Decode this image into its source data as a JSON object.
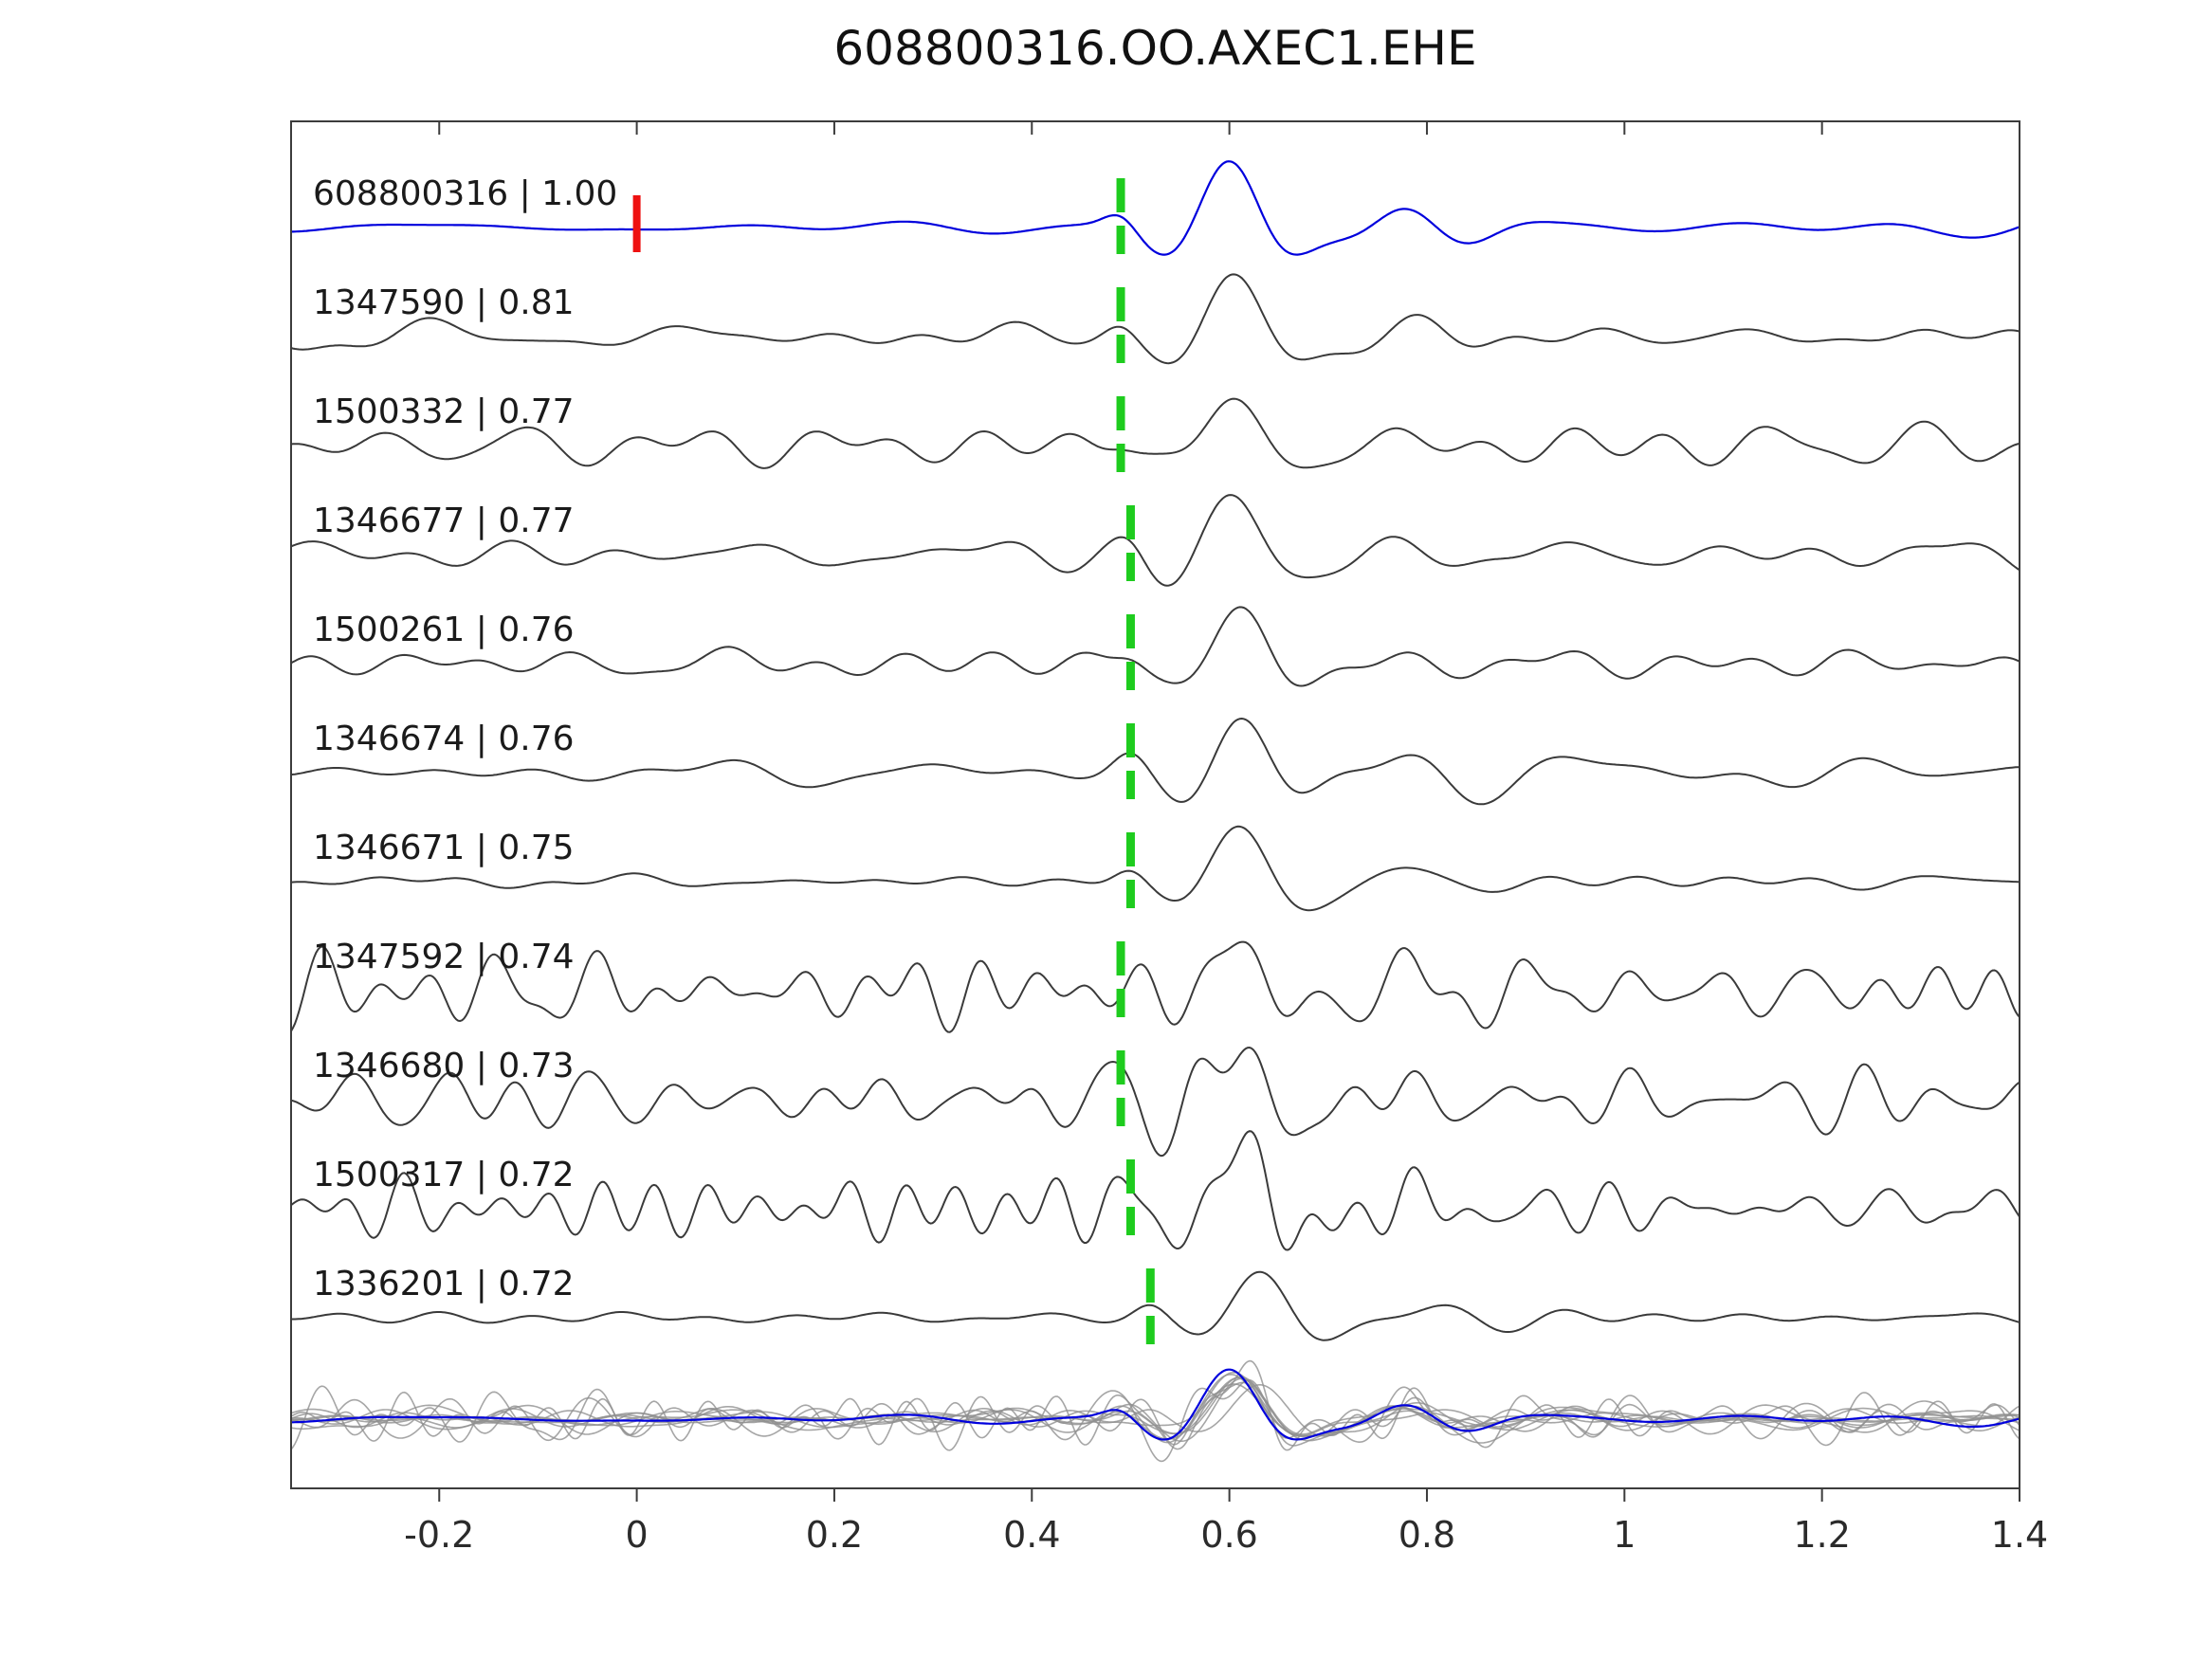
{
  "chart_data": {
    "type": "line",
    "title": "608800316.OO.AXEC1.EHE",
    "xlabel": "",
    "ylabel": "",
    "xlim": [
      -0.35,
      1.4
    ],
    "grid": false,
    "legend": "none",
    "x_ticks": [
      -0.2,
      0,
      0.2,
      0.4,
      0.6,
      0.8,
      1.0,
      1.2,
      1.4
    ],
    "x_tick_labels": [
      "-0.2",
      "0",
      "0.2",
      "0.4",
      "0.6",
      "0.8",
      "1",
      "1.2",
      "1.4"
    ],
    "colors": {
      "template_trace": "#0000dd",
      "match_trace": "#3a3a3a",
      "overlay_trace": "#909090",
      "pick_marker": "#1ecc1e",
      "origin_marker": "#ee1111",
      "axis": "#3c3c3c",
      "label_text": "#1a1a1a"
    },
    "traces": [
      {
        "id": "608800316",
        "correlation": "1.00",
        "label": "608800316 | 1.00",
        "is_template": true,
        "pick_time": 0.49,
        "origin_marker_time": 0.0,
        "noise": 0.1,
        "amplitude": 1.0
      },
      {
        "id": "1347590",
        "correlation": "0.81",
        "label": "1347590 | 0.81",
        "is_template": false,
        "pick_time": 0.49,
        "noise": 0.2,
        "amplitude": 0.92
      },
      {
        "id": "1500332",
        "correlation": "0.77",
        "label": "1500332 | 0.77",
        "is_template": false,
        "pick_time": 0.49,
        "noise": 0.33,
        "amplitude": 0.88
      },
      {
        "id": "1346677",
        "correlation": "0.77",
        "label": "1346677 | 0.77",
        "is_template": false,
        "pick_time": 0.5,
        "noise": 0.27,
        "amplitude": 0.92
      },
      {
        "id": "1500261",
        "correlation": "0.76",
        "label": "1500261 | 0.76",
        "is_template": false,
        "pick_time": 0.5,
        "noise": 0.23,
        "amplitude": 1.0
      },
      {
        "id": "1346674",
        "correlation": "0.76",
        "label": "1346674 | 0.76",
        "is_template": false,
        "pick_time": 0.5,
        "noise": 0.23,
        "amplitude": 0.95
      },
      {
        "id": "1346671",
        "correlation": "0.75",
        "label": "1346671 | 0.75",
        "is_template": false,
        "pick_time": 0.5,
        "noise": 0.15,
        "amplitude": 0.95
      },
      {
        "id": "1347592",
        "correlation": "0.74",
        "label": "1347592 | 0.74",
        "is_template": false,
        "pick_time": 0.49,
        "noise": 0.48,
        "amplitude": 0.9
      },
      {
        "id": "1346680",
        "correlation": "0.73",
        "label": "1346680 | 0.73",
        "is_template": false,
        "pick_time": 0.49,
        "noise": 0.48,
        "amplitude": 0.85
      },
      {
        "id": "1500317",
        "correlation": "0.72",
        "label": "1500317 | 0.72",
        "is_template": false,
        "pick_time": 0.5,
        "noise": 0.45,
        "amplitude": 1.0
      },
      {
        "id": "1336201",
        "correlation": "0.72",
        "label": "1336201 | 0.72",
        "is_template": false,
        "pick_time": 0.52,
        "noise": 0.1,
        "amplitude": 0.82
      }
    ],
    "overlay_row": {
      "description": "all matched traces overlaid in gray with blue template on top",
      "includes_template": true
    }
  }
}
